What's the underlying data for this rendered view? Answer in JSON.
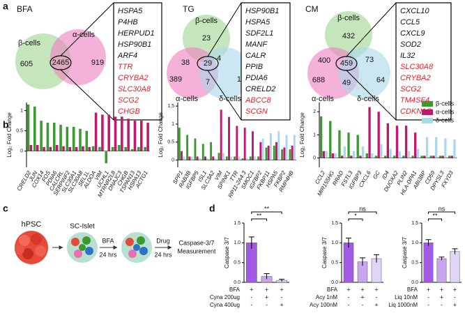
{
  "panel_labels": [
    "a",
    "b",
    "c",
    "d"
  ],
  "venns": [
    {
      "title": "BFA",
      "sets": [
        {
          "name": "β-cells",
          "color": "#9ed58f"
        },
        {
          "name": "α-cells",
          "color": "#ee7fbf"
        }
      ],
      "regions": [
        605,
        2465,
        919
      ],
      "genes": [
        "HSPA5",
        "P4HB",
        "HERPUD1",
        "HSP90B1",
        "ARF4"
      ],
      "genes_red": [
        "TTR",
        "CRYBA2",
        "SLC30A8",
        "SCG2",
        "CHGB"
      ],
      "red_color": "#e8202a"
    },
    {
      "title": "TG",
      "sets": [
        {
          "name": "β-cells",
          "color": "#9ed58f"
        },
        {
          "name": "α-cells",
          "color": "#ee7fbf"
        },
        {
          "name": "δ-cells",
          "color": "#a8d8ea"
        }
      ],
      "regions": [
        23,
        38,
        4,
        29,
        389,
        7,
        12
      ],
      "genes": [
        "HSP90B1",
        "HSPA5",
        "SDF2L1",
        "MANF",
        "CALR",
        "PPIB",
        "PDIA6",
        "CRELD2"
      ],
      "genes_red": [
        "ABCC8",
        "SCGN"
      ],
      "red_color": "#e8202a"
    },
    {
      "title": "CM",
      "sets": [
        {
          "name": "β-cells",
          "color": "#9ed58f"
        },
        {
          "name": "α-cells",
          "color": "#ee7fbf"
        },
        {
          "name": "δ-cells",
          "color": "#a8d8ea"
        }
      ],
      "regions": [
        432,
        400,
        73,
        459,
        688,
        49,
        64
      ],
      "genes": [
        "CXCL10",
        "CCL5",
        "CXCL9",
        "SOD2",
        "IL32"
      ],
      "genes_red": [
        "SLC30A8",
        "CRYBA2",
        "SCG2",
        "TM4SF4",
        "CDKN1C"
      ],
      "red_color": "#e8202a"
    }
  ],
  "schematic": {
    "start": "hPSC",
    "islet": "SC-Islet",
    "step1": "BFA",
    "time1": "24 hrs",
    "step2": "Drug",
    "time2": "24 hrs",
    "readout": "Caspase-3/7",
    "readout2": "Measurement"
  },
  "chart_data": [
    {
      "type": "grouped-bar",
      "y_label": "Log₂ Fold Change",
      "categories": [
        "CRELD2",
        "JUN",
        "COX14",
        "FOS",
        "PDIA6",
        "CALCRL",
        "SERPINF2",
        "SLC30A1",
        "SLC30A8",
        "SEL1L",
        "ALDOA",
        "VIM",
        "UCHL1",
        "MTRNR2L8",
        "DNAJC3",
        "CHGB",
        "TSPAN13",
        "HSPA13",
        "ACTG1"
      ],
      "series": [
        {
          "color": "#3a9a2e",
          "values": [
            1.15,
            1.1,
            0.75,
            0.7,
            0.7,
            0.65,
            0.6,
            0.6,
            0.55,
            0.5,
            0.12,
            0.1,
            -0.3,
            0.1,
            0.15,
            0.1,
            0.05,
            0.1,
            0.1
          ]
        },
        {
          "color": "#c0186e",
          "values": [
            0.15,
            0.15,
            0.1,
            0.1,
            0.15,
            0.12,
            0.1,
            0.1,
            0.12,
            0.1,
            0.95,
            0.9,
            0.9,
            0.85,
            0.85,
            0.8,
            0.75,
            0.75,
            0.7
          ]
        }
      ],
      "ylim": [
        -0.4,
        1.2
      ],
      "yticks": [
        0,
        0.5,
        1
      ]
    },
    {
      "type": "grouped-bar",
      "y_label": "Log₂ Fold Change",
      "categories": [
        "SPP1",
        "RAB3B",
        "IGFBP5",
        "ISL1",
        "SLC3A2",
        "VIM",
        "SPINK1",
        "TTR",
        "RP11-2A4.3",
        "SMOC1",
        "IGFBP2",
        "FKBP11",
        "HSPA5",
        "FKBP2",
        "RMP4HB"
      ],
      "series": [
        {
          "color": "#3a9a2e",
          "values": [
            0.9,
            0.7,
            0.6,
            0.45,
            0.5,
            0.2,
            0.1,
            0.1,
            0.05,
            0.1,
            0.1,
            0.35,
            0.4,
            0.3,
            0.3
          ]
        },
        {
          "color": "#c0186e",
          "values": [
            0.25,
            0.1,
            0.1,
            0.1,
            0.1,
            1.4,
            1.2,
            0.95,
            0.9,
            0.8,
            0.5,
            0.4,
            0.5,
            0.35,
            0.4
          ]
        },
        {
          "color": "#a8d8ea",
          "values": [
            0.1,
            0.1,
            0.05,
            0.05,
            0.05,
            0.2,
            0.1,
            0.1,
            0.05,
            0.1,
            0.6,
            0.75,
            0.8,
            0.7,
            0.7
          ]
        }
      ],
      "ylim": [
        -0.2,
        1.6
      ],
      "yticks": [
        0,
        0.5,
        1,
        1.5
      ]
    },
    {
      "type": "grouped-bar",
      "y_label": "Log₂ Fold Change",
      "legend": "top-right",
      "categories": [
        "CCL2",
        "MIR155HG",
        "RRAD",
        "FSTL3",
        "IGFBP3",
        "CXCL6",
        "GC",
        "ID4",
        "DUOXA2",
        "PLIN2",
        "HLA-DPA1",
        "ABI3BP",
        "CD59",
        "DPYSL3",
        "FXYD3"
      ],
      "series": [
        {
          "name": "β-cells",
          "color": "#3a9a2e",
          "values": [
            1.8,
            1.6,
            1.2,
            1.1,
            1.0,
            0.2,
            0.1,
            0.1,
            0.1,
            0.1,
            0.1,
            0.1,
            0.1,
            0.1,
            0.1
          ]
        },
        {
          "name": "α-cells",
          "color": "#c0186e",
          "values": [
            0.3,
            0.2,
            0.1,
            0.1,
            0.1,
            2.2,
            2.0,
            1.5,
            1.4,
            1.4,
            1.1,
            0.1,
            0.1,
            0.1,
            0.1
          ]
        },
        {
          "name": "δ-cells",
          "color": "#a8d8ea",
          "values": [
            0.3,
            0.2,
            0.5,
            0.3,
            0.5,
            0.2,
            0.6,
            0.4,
            0.3,
            0.3,
            0.4,
            0.9,
            0.9,
            0.85,
            0.8
          ]
        }
      ],
      "ylim": [
        -0.4,
        2.4
      ],
      "yticks": [
        0,
        1,
        2
      ]
    },
    {
      "type": "condition-bar",
      "y_label": "Caspase 3/7",
      "values": [
        1.0,
        0.15,
        0.05
      ],
      "errors": [
        0.15,
        0.07,
        0.03
      ],
      "colors": [
        "#a35ae6",
        "#c9a5f0",
        "#e0d4f7"
      ],
      "significance": [
        "**",
        "**"
      ],
      "conditions": [
        {
          "label": "BFA",
          "signs": [
            "+",
            "+",
            "+"
          ]
        },
        {
          "label": "Cyna 200ug",
          "signs": [
            "-",
            "+",
            "-"
          ]
        },
        {
          "label": "Cyna 400ug",
          "signs": [
            "-",
            "-",
            "+"
          ]
        }
      ],
      "ylim": [
        0,
        1.5
      ],
      "yticks": [
        {
          "value": 0,
          "label": "0.0"
        },
        0.5,
        {
          "value": 1,
          "label": "1.0"
        },
        1.5
      ]
    },
    {
      "type": "condition-bar",
      "y_label": "Caspase 3/7",
      "values": [
        1.0,
        0.52,
        0.6
      ],
      "errors": [
        0.12,
        0.1,
        0.1
      ],
      "colors": [
        "#a35ae6",
        "#c9a5f0",
        "#e0d4f7"
      ],
      "significance": [
        "*",
        "ns"
      ],
      "conditions": [
        {
          "label": "BFA",
          "signs": [
            "+",
            "+",
            "+"
          ]
        },
        {
          "label": "Acy 1nM",
          "signs": [
            "-",
            "+",
            "-"
          ]
        },
        {
          "label": "Acy 100nM",
          "signs": [
            "-",
            "-",
            "+"
          ]
        }
      ],
      "ylim": [
        0,
        1.5
      ],
      "yticks": [
        {
          "value": 0,
          "label": "0.0"
        },
        0.5,
        {
          "value": 1,
          "label": "1.0"
        },
        1.5
      ]
    },
    {
      "type": "condition-bar",
      "y_label": "Caspase 3/7",
      "values": [
        1.0,
        0.6,
        0.78
      ],
      "errors": [
        0.08,
        0.04,
        0.07
      ],
      "colors": [
        "#a35ae6",
        "#c9a5f0",
        "#e0d4f7"
      ],
      "significance": [
        "**",
        "ns"
      ],
      "conditions": [
        {
          "label": "BFA",
          "signs": [
            "+",
            "+",
            "+"
          ]
        },
        {
          "label": "Liq 10nM",
          "signs": [
            "-",
            "+",
            "-"
          ]
        },
        {
          "label": "Liq 1000nM",
          "signs": [
            "-",
            "-",
            "+"
          ]
        }
      ],
      "ylim": [
        0,
        1.5
      ],
      "yticks": [
        {
          "value": 0,
          "label": "0.0"
        },
        0.5,
        {
          "value": 1,
          "label": "1.0"
        },
        1.5
      ]
    }
  ]
}
